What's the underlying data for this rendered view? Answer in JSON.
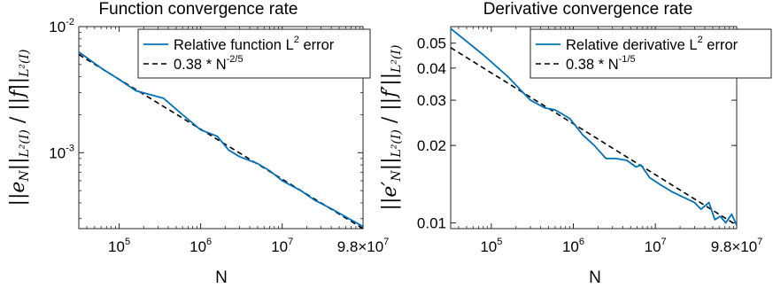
{
  "chart_data": [
    {
      "type": "line",
      "title": "Function convergence rate",
      "xlabel": "N",
      "ylabel": "||e_N||_{L²(I)} / ||f||_{L²(I)}",
      "xscale": "log",
      "yscale": "log",
      "xlim": [
        32000,
        98000000
      ],
      "ylim": [
        0.00025,
        0.01
      ],
      "xticks": [
        {
          "value": 100000,
          "base": "10",
          "exp": "5"
        },
        {
          "value": 1000000,
          "base": "10",
          "exp": "6"
        },
        {
          "value": 10000000,
          "base": "10",
          "exp": "7"
        },
        {
          "value": 98000000,
          "base": "9.8×10",
          "exp": "7"
        }
      ],
      "yticks": [
        {
          "value": 0.01,
          "base": "10",
          "exp": "-2"
        },
        {
          "value": 0.001,
          "base": "10",
          "exp": "-3"
        }
      ],
      "legend_position": "top-right",
      "series": [
        {
          "name": "Relative function L",
          "name_sup": "2",
          "name_tail": " error",
          "color": "#0072BD",
          "dash": "solid",
          "x": [
            32000,
            60000,
            100000,
            160000,
            350000,
            600000,
            1000000,
            1600000,
            2200000,
            3000000,
            5000000,
            7000000,
            10000000,
            17000000,
            25000000,
            40000000,
            60000000,
            98000000
          ],
          "y": [
            0.0063,
            0.0047,
            0.0038,
            0.0031,
            0.0027,
            0.002,
            0.00152,
            0.00135,
            0.00105,
            0.00093,
            0.00082,
            0.00072,
            0.0006,
            0.0005,
            0.00042,
            0.00036,
            0.00031,
            0.00026
          ]
        },
        {
          "name": "0.38 * N",
          "name_sup": "-2/5",
          "name_tail": "",
          "color": "#000000",
          "dash": "dashed",
          "x": [
            32000,
            98000000
          ],
          "y": [
            0.006,
            0.00025
          ]
        }
      ]
    },
    {
      "type": "line",
      "title": "Derivative convergence rate",
      "xlabel": "N",
      "ylabel": "||e′_N||_{L²(I)} / ||f′||_{L²(I)}",
      "xscale": "log",
      "yscale": "log",
      "xlim": [
        32000,
        98000000
      ],
      "ylim": [
        0.0095,
        0.058
      ],
      "xticks": [
        {
          "value": 100000,
          "base": "10",
          "exp": "5"
        },
        {
          "value": 1000000,
          "base": "10",
          "exp": "6"
        },
        {
          "value": 10000000,
          "base": "10",
          "exp": "7"
        },
        {
          "value": 98000000,
          "base": "9.8×10",
          "exp": "7"
        }
      ],
      "yticks": [
        {
          "value": 0.01,
          "label": "0.01"
        },
        {
          "value": 0.02,
          "label": "0.02"
        },
        {
          "value": 0.03,
          "label": "0.03"
        },
        {
          "value": 0.04,
          "label": "0.04"
        },
        {
          "value": 0.05,
          "label": "0.05"
        }
      ],
      "legend_position": "top-right",
      "series": [
        {
          "name": "Relative derivative L",
          "name_sup": "2",
          "name_tail": " error",
          "color": "#0072BD",
          "dash": "solid",
          "x": [
            32000,
            80000,
            160000,
            300000,
            450000,
            600000,
            900000,
            1300000,
            1800000,
            2500000,
            3300000,
            4500000,
            5800000,
            6700000,
            8500000,
            11000000,
            16000000,
            23000000,
            30000000,
            36000000,
            45000000,
            53000000,
            62000000,
            72000000,
            85000000,
            98000000
          ],
          "y": [
            0.057,
            0.045,
            0.037,
            0.03,
            0.028,
            0.0275,
            0.0255,
            0.022,
            0.02,
            0.0178,
            0.0178,
            0.0175,
            0.0165,
            0.0168,
            0.015,
            0.0142,
            0.0132,
            0.0125,
            0.012,
            0.0113,
            0.012,
            0.0103,
            0.0106,
            0.01,
            0.0108,
            0.0098
          ]
        },
        {
          "name": "0.38 * N",
          "name_sup": "-1/5",
          "name_tail": "",
          "color": "#000000",
          "dash": "dashed",
          "x": [
            32000,
            98000000
          ],
          "y": [
            0.048,
            0.0098
          ]
        }
      ]
    }
  ]
}
